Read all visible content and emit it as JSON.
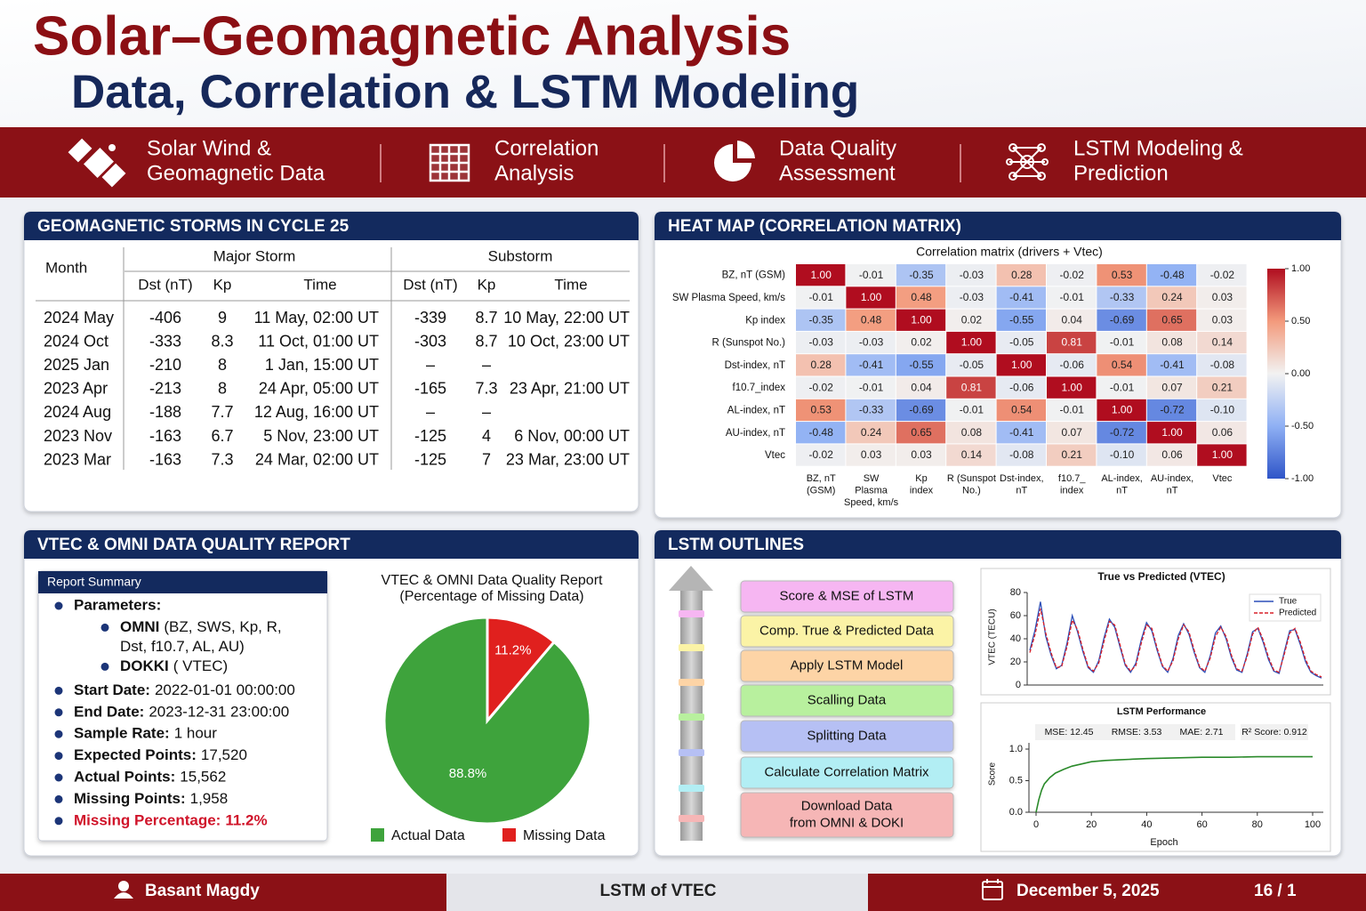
{
  "header": {
    "title": "Solar–Geomagnetic Analysis",
    "subtitle": "Data, Correlation & LSTM Modeling"
  },
  "nav": [
    {
      "lines": [
        "Solar Wind &",
        "Geomagnetic Data"
      ]
    },
    {
      "lines": [
        "Correlation",
        "Analysis"
      ]
    },
    {
      "lines": [
        "Data Quality",
        "Assessment"
      ]
    },
    {
      "lines": [
        "LSTM Modeling &",
        "Prediction"
      ]
    }
  ],
  "storms": {
    "title": "GEOMAGNETIC STORMS IN CYCLE 25",
    "month_header": "Month",
    "groups": [
      "Major Storm",
      "Substorm"
    ],
    "columns": [
      "Dst (nT)",
      "Kp",
      "Time",
      "Dst (nT)",
      "Kp",
      "Time"
    ],
    "rows": [
      [
        "2024 May",
        -406,
        9,
        "11 May, 02:00 UT",
        -339,
        8.7,
        "10 May, 22:00 UT"
      ],
      [
        "2024 Oct",
        -333,
        8.3,
        "11 Oct, 01:00 UT",
        -303,
        8.7,
        "10 Oct, 23:00 UT"
      ],
      [
        "2025 Jan",
        -210,
        8,
        "1 Jan, 15:00 UT",
        "–",
        "–",
        ""
      ],
      [
        "2023 Apr",
        -213,
        8,
        "24 Apr, 05:00 UT",
        -165,
        7.3,
        "23 Apr, 21:00 UT"
      ],
      [
        "2024 Aug",
        -188,
        7.7,
        "12 Aug, 16:00 UT",
        "–",
        "–",
        ""
      ],
      [
        "2023 Nov",
        -163,
        6.7,
        "5 Nov, 23:00 UT",
        -125,
        4,
        "6 Nov, 00:00 UT"
      ],
      [
        "2023 Mar",
        -163,
        7.3,
        "24 Mar, 02:00 UT",
        -125,
        7,
        "23 Mar, 23:00 UT"
      ]
    ]
  },
  "heatmap": {
    "title": "HEAT MAP (CORRELATION MATRIX)",
    "chart": {
      "type": "heatmap",
      "title": "Correlation matrix (drivers + Vtec)",
      "rows": [
        "BZ, nT (GSM)",
        "SW Plasma Speed, km/s",
        "Kp index",
        "R (Sunspot No.)",
        "Dst-index, nT",
        "f10.7_index",
        "AL-index, nT",
        "AU-index, nT",
        "Vtec"
      ],
      "columns": [
        [
          "BZ, nT",
          "(GSM)"
        ],
        [
          "SW",
          "Plasma",
          "Speed, km/s"
        ],
        [
          "Kp",
          "index"
        ],
        [
          "R (Sunspot",
          "No.)"
        ],
        [
          "Dst-index,",
          "nT"
        ],
        [
          "f10.7_",
          "index"
        ],
        [
          "AL-index,",
          "nT"
        ],
        [
          "AU-index,",
          "nT"
        ],
        [
          "Vtec"
        ]
      ],
      "values": [
        [
          1.0,
          -0.01,
          -0.35,
          -0.03,
          0.28,
          -0.02,
          0.53,
          -0.48,
          -0.02
        ],
        [
          -0.01,
          1.0,
          0.48,
          -0.03,
          -0.41,
          -0.01,
          -0.33,
          0.24,
          0.03
        ],
        [
          -0.35,
          0.48,
          1.0,
          0.02,
          -0.55,
          0.04,
          -0.69,
          0.65,
          0.03
        ],
        [
          -0.03,
          -0.03,
          0.02,
          1.0,
          -0.05,
          0.81,
          -0.01,
          0.08,
          0.14
        ],
        [
          0.28,
          -0.41,
          -0.55,
          -0.05,
          1.0,
          -0.06,
          0.54,
          -0.41,
          -0.08
        ],
        [
          -0.02,
          -0.01,
          0.04,
          0.81,
          -0.06,
          1.0,
          -0.01,
          0.07,
          0.21
        ],
        [
          0.53,
          -0.33,
          -0.69,
          -0.01,
          0.54,
          -0.01,
          1.0,
          -0.72,
          -0.1
        ],
        [
          -0.48,
          0.24,
          0.65,
          0.08,
          -0.41,
          0.07,
          -0.72,
          1.0,
          0.06
        ],
        [
          -0.02,
          0.03,
          0.03,
          0.14,
          -0.08,
          0.21,
          -0.1,
          0.06,
          1.0
        ]
      ],
      "value_labels": [
        [
          "1.00",
          "-0.01",
          "-0.35",
          "-0.03",
          "0.28",
          "-0.02",
          "0.53",
          "-0.48",
          "-0.02"
        ],
        [
          "-0.01",
          "1.00",
          "0.48",
          "-0.03",
          "-0.41",
          "-0.01",
          "-0.33",
          "0.24",
          "0.03"
        ],
        [
          "-0.35",
          "0.48",
          "1.00",
          "0.02",
          "-0.55",
          "0.04",
          "-0.69",
          "0.65",
          "0.03"
        ],
        [
          "-0.03",
          "-0.03",
          "0.02",
          "1.00",
          "-0.05",
          "0.81",
          "-0.01",
          "0.08",
          "0.14"
        ],
        [
          "0.28",
          "-0.41",
          "-0.55",
          "-0.05",
          "1.00",
          "-0.06",
          "0.54",
          "-0.41",
          "-0.08"
        ],
        [
          "-0.02",
          "-0.01",
          "0.04",
          "0.81",
          "-0.06",
          "1.00",
          "-0.01",
          "0.07",
          "0.21"
        ],
        [
          "0.53",
          "-0.33",
          "-0.69",
          "-0.01",
          "0.54",
          "-0.01",
          "1.00",
          "-0.72",
          "-0.10"
        ],
        [
          "-0.48",
          "0.24",
          "0.65",
          "0.08",
          "-0.41",
          "0.07",
          "-0.72",
          "1.00",
          "0.06"
        ],
        [
          "-0.02",
          "0.03",
          "0.03",
          "0.14",
          "-0.08",
          "0.21",
          "-0.10",
          "0.06",
          "1.00"
        ]
      ],
      "clim": [
        -1,
        1
      ],
      "cticks": [
        {
          "value": 1,
          "label": "1.00"
        },
        {
          "value": 0.5,
          "label": "0.50"
        },
        {
          "value": 0,
          "label": "0.00"
        },
        {
          "value": -0.5,
          "label": "-0.50"
        },
        {
          "value": -1,
          "label": "-1.00"
        }
      ],
      "colors": [
        "#2f55c8",
        "#8fb0f4",
        "#f2f2f2",
        "#f39a7c",
        "#b00d1f"
      ]
    }
  },
  "quality": {
    "title": "VTEC & OMNI DATA QUALITY REPORT",
    "summary": {
      "title": "Report Summary",
      "items": [
        {
          "label": "Parameters:",
          "children": [
            {
              "label": "OMNI",
              "value": [
                "(BZ, SWS, Kp, R,",
                "Dst, f10.7, AL, AU)"
              ]
            },
            {
              "label": "DOKKI",
              "value": [
                "( VTEC)"
              ]
            }
          ]
        },
        {
          "label": "Start Date:",
          "value": "2022-01-01 00:00:00"
        },
        {
          "label": "End Date:",
          "value": "2023-12-31 23:00:00"
        },
        {
          "label": "Sample Rate:",
          "value": "1 hour"
        },
        {
          "label": "Expected Points:",
          "value": "17,520"
        },
        {
          "label": "Actual Points:",
          "value": "15,562"
        },
        {
          "label": "Missing Points:",
          "value": "1,958"
        },
        {
          "label": "Missing Percentage:",
          "value": "11.2%",
          "color": "#d0142a"
        }
      ]
    },
    "chart": {
      "type": "pie",
      "title": [
        "VTEC & OMNI Data Quality Report",
        "(Percentage of Missing Data)"
      ],
      "categories": [
        "Actual Data",
        "Missing Data"
      ],
      "values": [
        88.8,
        11.2
      ],
      "value_labels": [
        "88.8%",
        "11.2%"
      ],
      "colors": [
        "#3ea33c",
        "#e0201e"
      ]
    }
  },
  "lstm": {
    "title": "LSTM OUTLINES",
    "steps": [
      {
        "lines": [
          "Score & MSE of LSTM"
        ],
        "color": "#f6b6f2"
      },
      {
        "lines": [
          "Comp. True & Predicted Data"
        ],
        "color": "#fbf3a6"
      },
      {
        "lines": [
          "Apply LSTM Model"
        ],
        "color": "#fdd4a6"
      },
      {
        "lines": [
          "Scalling Data"
        ],
        "color": "#b8f09e"
      },
      {
        "lines": [
          "Splitting Data"
        ],
        "color": "#b6c0f4"
      },
      {
        "lines": [
          "Calculate Correlation Matrix"
        ],
        "color": "#b2eef4"
      },
      {
        "lines": [
          "Download Data",
          "from OMNI & DOKI"
        ],
        "color": "#f6b6b6"
      }
    ],
    "true_vs_pred": {
      "type": "line",
      "title": "True vs Predicted (VTEC)",
      "ylabel": "VTEC (TECU)",
      "ylim": [
        0,
        80
      ],
      "yticks": [
        0,
        20,
        40,
        60,
        80
      ],
      "series": [
        {
          "name": "True",
          "color": "#2c4fb8",
          "dashed": false,
          "values": [
            30,
            48,
            72,
            42,
            26,
            14,
            17,
            36,
            60,
            46,
            29,
            15,
            11,
            21,
            41,
            57,
            50,
            33,
            17,
            11,
            19,
            39,
            54,
            47,
            30,
            16,
            11,
            23,
            43,
            53,
            44,
            28,
            15,
            11,
            25,
            45,
            51,
            40,
            24,
            13,
            11,
            27,
            46,
            49,
            37,
            22,
            12,
            10,
            29,
            47,
            48,
            35,
            20,
            11,
            8,
            6
          ]
        },
        {
          "name": "Predicted",
          "color": "#d8202a",
          "dashed": true,
          "values": [
            28,
            44,
            66,
            45,
            28,
            15,
            16,
            33,
            56,
            48,
            31,
            16,
            12,
            19,
            38,
            55,
            52,
            35,
            18,
            12,
            17,
            36,
            52,
            49,
            32,
            17,
            12,
            21,
            40,
            52,
            46,
            30,
            16,
            12,
            23,
            42,
            50,
            42,
            26,
            14,
            12,
            25,
            44,
            50,
            39,
            24,
            13,
            11,
            27,
            45,
            49,
            37,
            22,
            12,
            9,
            7
          ]
        }
      ]
    },
    "performance": {
      "type": "line",
      "title": "LSTM Performance",
      "metrics": [
        "MSE: 12.45",
        "RMSE: 3.53",
        "MAE: 2.71",
        "R² Score: 0.912"
      ],
      "xlabel": "Epoch",
      "ylabel": "Score",
      "xlim": [
        0,
        100
      ],
      "xticks": [
        0,
        20,
        40,
        60,
        80,
        100
      ],
      "ylim": [
        0,
        1
      ],
      "yticks": [
        {
          "value": 0,
          "label": "0.0"
        },
        {
          "value": 0.5,
          "label": "0.5"
        },
        {
          "value": 1,
          "label": "1.0"
        }
      ],
      "color": "#2a8a2a",
      "x": [
        0,
        1,
        2,
        3,
        5,
        7,
        10,
        13,
        16,
        20,
        25,
        30,
        35,
        40,
        50,
        60,
        70,
        80,
        90,
        100
      ],
      "values": [
        0,
        0.2,
        0.35,
        0.45,
        0.55,
        0.62,
        0.68,
        0.73,
        0.76,
        0.8,
        0.82,
        0.83,
        0.84,
        0.85,
        0.86,
        0.87,
        0.87,
        0.88,
        0.88,
        0.88
      ]
    }
  },
  "footer": {
    "author": "Basant Magdy",
    "topic": "LSTM of VTEC",
    "date": "December 5, 2025",
    "page": "16 / 1"
  }
}
